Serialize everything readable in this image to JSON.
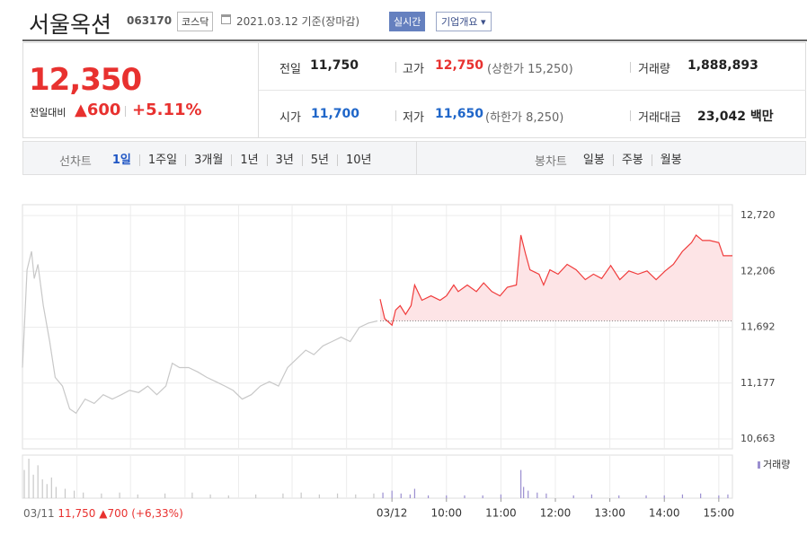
{
  "header": {
    "name": "서울옥션",
    "code": "063170",
    "market": "코스닥",
    "date": "2021.03.12",
    "basis": "기준(장마감)",
    "realtime": "실시간",
    "company_info": "기업개요"
  },
  "summary": {
    "price": "12,350",
    "change_label": "전일대비",
    "change": "▲600",
    "change_pct": "+5.11%",
    "items": [
      {
        "label": "전일",
        "value": "11,750"
      },
      {
        "label": "고가",
        "value": "12,750",
        "note": "(상한가 15,250)"
      },
      {
        "label": "거래량",
        "value": "1,888,893"
      },
      {
        "label": "시가",
        "value": "11,700"
      },
      {
        "label": "저가",
        "value": "11,650",
        "note": "(하한가 8,250)"
      },
      {
        "label": "거래대금",
        "value": "23,042",
        "unit": "백만"
      }
    ]
  },
  "tabs": {
    "line_label": "선차트",
    "line_periods": [
      "1일",
      "1주일",
      "3개월",
      "1년",
      "3년",
      "5년",
      "10년"
    ],
    "candle_label": "봉차트",
    "candle_periods": [
      "일봉",
      "주봉",
      "월봉"
    ]
  },
  "chart_data": [
    {
      "type": "line",
      "ylim": [
        10572,
        12820
      ],
      "yticks": [
        {
          "value": 12720,
          "label": "12,720"
        },
        {
          "value": 12206,
          "label": "12,206"
        },
        {
          "value": 11692,
          "label": "11,692"
        },
        {
          "value": 11177,
          "label": "11,177"
        },
        {
          "value": 10663,
          "label": "10,663"
        }
      ],
      "xlim": [
        -407,
        375
      ],
      "xticks": [
        {
          "value": 0,
          "label": "03/12"
        },
        {
          "value": 60,
          "label": "10:00"
        },
        {
          "value": 120,
          "label": "11:00"
        },
        {
          "value": 180,
          "label": "12:00"
        },
        {
          "value": 240,
          "label": "13:00"
        },
        {
          "value": 300,
          "label": "14:00"
        },
        {
          "value": 360,
          "label": "15:00"
        }
      ],
      "minor_xticks": [
        -347,
        -288,
        -228,
        -169,
        -110,
        -50
      ],
      "grid": true,
      "reference_line": 11750,
      "series": [
        {
          "color": "#c8c8c8",
          "x": [
            -407,
            -402,
            -397,
            -394,
            -390,
            -384,
            -377,
            -371,
            -363,
            -355,
            -348,
            -338,
            -328,
            -318,
            -308,
            -298,
            -289,
            -279,
            -269,
            -259,
            -249,
            -242,
            -234,
            -224,
            -214,
            -204,
            -194,
            -184,
            -175,
            -165,
            -155,
            -145,
            -135,
            -125,
            -115,
            -105,
            -95,
            -86,
            -76,
            -66,
            -56,
            -46,
            -36,
            -26,
            -16
          ],
          "values": [
            11320,
            12220,
            12390,
            12140,
            12270,
            11890,
            11560,
            11230,
            11150,
            10940,
            10900,
            11030,
            10990,
            11070,
            11030,
            11070,
            11110,
            11090,
            11150,
            11070,
            11150,
            11360,
            11320,
            11320,
            11280,
            11230,
            11190,
            11150,
            11110,
            11030,
            11070,
            11150,
            11190,
            11150,
            11320,
            11400,
            11480,
            11440,
            11520,
            11560,
            11600,
            11560,
            11690,
            11730,
            11750
          ]
        },
        {
          "color": "#f03b3b",
          "fill": "#fde4e6",
          "x": [
            -13,
            -8,
            0,
            4,
            9,
            15,
            21,
            25,
            33,
            43,
            53,
            60,
            68,
            73,
            83,
            93,
            101,
            110,
            119,
            127,
            137,
            142,
            147,
            152,
            162,
            167,
            174,
            183,
            193,
            203,
            213,
            222,
            231,
            241,
            251,
            261,
            271,
            281,
            291,
            301,
            310,
            320,
            330,
            335,
            342,
            350,
            360,
            365,
            375
          ],
          "values": [
            11950,
            11770,
            11710,
            11850,
            11890,
            11810,
            11890,
            12080,
            11940,
            11980,
            11940,
            11980,
            12080,
            12020,
            12080,
            12020,
            12100,
            12020,
            11980,
            12060,
            12080,
            12540,
            12370,
            12220,
            12180,
            12080,
            12220,
            12180,
            12270,
            12220,
            12130,
            12180,
            12140,
            12260,
            12130,
            12210,
            12180,
            12210,
            12130,
            12210,
            12270,
            12390,
            12470,
            12540,
            12490,
            12490,
            12470,
            12350,
            12350
          ]
        }
      ]
    },
    {
      "type": "bar",
      "xlim": [
        -407,
        375
      ],
      "legend": "upper right",
      "series": [
        {
          "color": "#c8c8c8",
          "x": [
            -405,
            -400,
            -395,
            -390,
            -385,
            -380,
            -375,
            -370,
            -360,
            -350,
            -340,
            -320,
            -300,
            -280,
            -250,
            -220,
            -200,
            -180,
            -150,
            -120,
            -100,
            -80,
            -60,
            -40,
            -20
          ],
          "values": [
            30,
            42,
            25,
            35,
            20,
            15,
            22,
            12,
            10,
            8,
            6,
            5,
            6,
            4,
            5,
            6,
            4,
            3,
            4,
            5,
            6,
            4,
            5,
            4,
            5
          ]
        },
        {
          "name": "거래량",
          "color": "#9b8fd0",
          "x": [
            -10,
            0,
            10,
            20,
            25,
            40,
            60,
            80,
            100,
            120,
            142,
            145,
            150,
            160,
            170,
            200,
            220,
            250,
            280,
            300,
            320,
            340,
            360,
            370
          ],
          "values": [
            6,
            8,
            5,
            4,
            10,
            3,
            3,
            3,
            3,
            4,
            30,
            12,
            8,
            6,
            5,
            3,
            4,
            3,
            3,
            3,
            4,
            5,
            3,
            4
          ]
        }
      ]
    }
  ],
  "footer": {
    "date": "03/11",
    "price": "11,750",
    "change": "▲700",
    "change_pct": "(+6,33%)"
  }
}
